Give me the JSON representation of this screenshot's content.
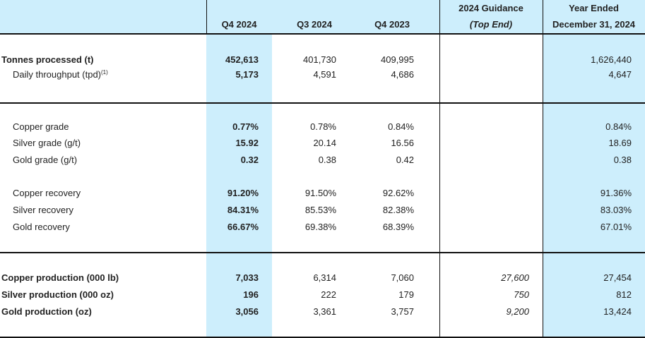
{
  "header": {
    "columns": [
      "Q4 2024",
      "Q3 2024",
      "Q4 2023"
    ],
    "guidance_line1": "2024 Guidance",
    "guidance_line2": "(Top End)",
    "year_line1": "Year Ended",
    "year_line2": "December 31, 2024"
  },
  "colors": {
    "highlight": "#cdeefc"
  },
  "rows": [
    {
      "label": "Tonnes processed (t)",
      "bold": true,
      "indent": false,
      "values": [
        "452,613",
        "401,730",
        "409,995",
        "",
        "1,626,440"
      ]
    },
    {
      "label": "Daily throughput (tpd)",
      "footnote": "(1)",
      "bold": false,
      "indent": true,
      "values": [
        "5,173",
        "4,591",
        "4,686",
        "",
        "4,647"
      ]
    },
    {
      "label": "Copper grade",
      "bold": false,
      "indent": true,
      "values": [
        "0.77%",
        "0.78%",
        "0.84%",
        "",
        "0.84%"
      ]
    },
    {
      "label": "Silver grade (g/t)",
      "bold": false,
      "indent": true,
      "values": [
        "15.92",
        "20.14",
        "16.56",
        "",
        "18.69"
      ]
    },
    {
      "label": "Gold grade (g/t)",
      "bold": false,
      "indent": true,
      "values": [
        "0.32",
        "0.38",
        "0.42",
        "",
        "0.38"
      ]
    },
    {
      "label": "Copper recovery",
      "bold": false,
      "indent": true,
      "values": [
        "91.20%",
        "91.50%",
        "92.62%",
        "",
        "91.36%"
      ]
    },
    {
      "label": "Silver recovery",
      "bold": false,
      "indent": true,
      "values": [
        "84.31%",
        "85.53%",
        "82.38%",
        "",
        "83.03%"
      ]
    },
    {
      "label": "Gold recovery",
      "bold": false,
      "indent": true,
      "values": [
        "66.67%",
        "69.38%",
        "68.39%",
        "",
        "67.01%"
      ]
    },
    {
      "label": "Copper production (000 lb)",
      "bold": true,
      "indent": false,
      "values": [
        "7,033",
        "6,314",
        "7,060",
        "27,600",
        "27,454"
      ]
    },
    {
      "label": "Silver production (000 oz)",
      "bold": true,
      "indent": false,
      "values": [
        "196",
        "222",
        "179",
        "750",
        "812"
      ]
    },
    {
      "label": "Gold production (oz)",
      "bold": true,
      "indent": false,
      "values": [
        "3,056",
        "3,361",
        "3,757",
        "9,200",
        "13,424"
      ]
    }
  ]
}
